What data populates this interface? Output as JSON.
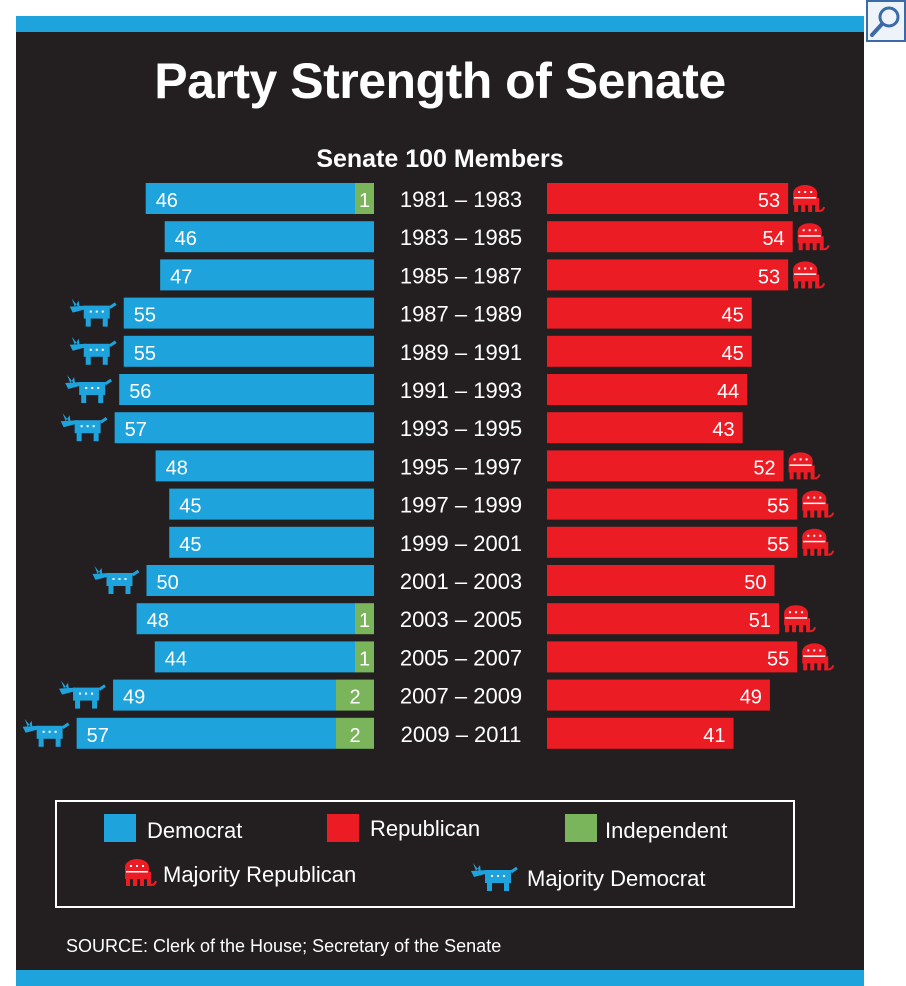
{
  "title": "Party Strength of Senate",
  "subtitle": "Senate 100 Members",
  "source": "SOURCE: Clerk of the House; Secretary of the Senate",
  "colors": {
    "background": "#231f20",
    "accent": "#1fa3dc",
    "democrat": "#1fa3dc",
    "republican": "#ec1c24",
    "independent": "#7ab55c"
  },
  "legend": {
    "democrat": "Democrat",
    "republican": "Republican",
    "independent": "Independent",
    "majority_republican": "Majority Republican",
    "majority_democrat": "Majority Democrat"
  },
  "icons": {
    "zoom": "magnifier-icon",
    "majority_republican": "elephant-icon",
    "majority_democrat": "donkey-icon"
  },
  "chart_data": {
    "type": "bar",
    "categories": [
      "1981 – 1983",
      "1983 – 1985",
      "1985 – 1987",
      "1987 – 1989",
      "1989 – 1991",
      "1991 – 1993",
      "1993 – 1995",
      "1995 – 1997",
      "1997 – 1999",
      "1999 – 2001",
      "2001 – 2003",
      "2003 – 2005",
      "2005 – 2007",
      "2007 – 2009",
      "2009 – 2011"
    ],
    "series": [
      {
        "name": "Democrat",
        "values": [
          46,
          46,
          47,
          55,
          55,
          56,
          57,
          48,
          45,
          45,
          50,
          48,
          44,
          49,
          57
        ]
      },
      {
        "name": "Independent",
        "values": [
          1,
          0,
          0,
          0,
          0,
          0,
          0,
          0,
          0,
          0,
          0,
          1,
          1,
          2,
          2
        ]
      },
      {
        "name": "Republican",
        "values": [
          53,
          54,
          53,
          45,
          45,
          44,
          43,
          52,
          55,
          55,
          50,
          51,
          55,
          49,
          41
        ]
      }
    ],
    "majority": [
      "R",
      "R",
      "R",
      "D",
      "D",
      "D",
      "D",
      "R",
      "R",
      "R",
      "D",
      "R",
      "R",
      "D",
      "D"
    ]
  }
}
